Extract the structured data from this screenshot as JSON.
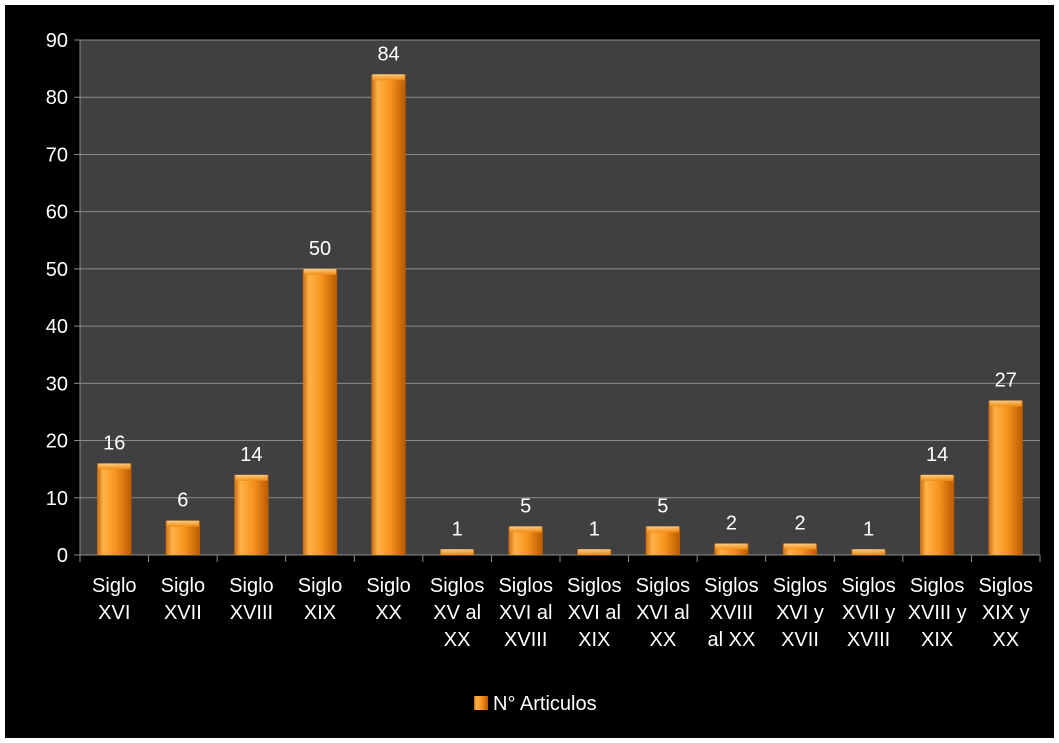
{
  "colors": {
    "background": "#000000",
    "plot_area": "#404040",
    "gridline": "#8c8c8c",
    "bar_light": "#ffb347",
    "bar_mid": "#f7931e",
    "bar_dark": "#c85f00",
    "text": "#ffffff"
  },
  "chart_data": {
    "type": "bar",
    "categories": [
      [
        "Siglo",
        "XVI"
      ],
      [
        "Siglo",
        "XVII"
      ],
      [
        "Siglo",
        "XVIII"
      ],
      [
        "Siglo",
        "XIX"
      ],
      [
        "Siglo",
        "XX"
      ],
      [
        "Siglos",
        "XV al",
        "XX"
      ],
      [
        "Siglos",
        "XVI al",
        "XVIII"
      ],
      [
        "Siglos",
        "XVI al",
        "XIX"
      ],
      [
        "Siglos",
        "XVI al",
        "XX"
      ],
      [
        "Siglos",
        "XVIII",
        "al XX"
      ],
      [
        "Siglos",
        "XVI y",
        "XVII"
      ],
      [
        "Siglos",
        "XVII y",
        "XVIII"
      ],
      [
        "Siglos",
        "XVIII y",
        "XIX"
      ],
      [
        "Siglos",
        "XIX y",
        "XX"
      ]
    ],
    "series": [
      {
        "name": "N° Articulos",
        "values": [
          16,
          6,
          14,
          50,
          84,
          1,
          5,
          1,
          5,
          2,
          2,
          1,
          14,
          27
        ]
      }
    ],
    "ylim": [
      0,
      90
    ],
    "yticks": [
      0,
      10,
      20,
      30,
      40,
      50,
      60,
      70,
      80,
      90
    ],
    "grid": true,
    "legend_position": "bottom",
    "data_labels": true
  }
}
